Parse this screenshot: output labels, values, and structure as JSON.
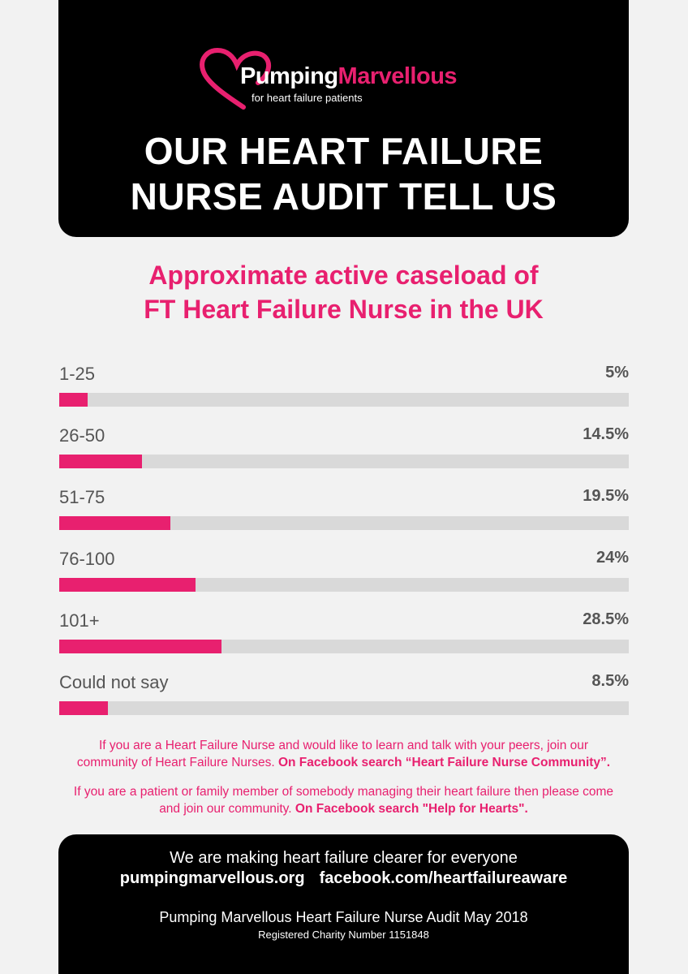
{
  "brand": {
    "name_part1": "Pumping",
    "name_part2": "Marvellous",
    "tagline": "for heart failure patients",
    "accent_color": "#e8206f",
    "logo_icon": "heart-icon"
  },
  "header": {
    "title_line1": "OUR HEART FAILURE",
    "title_line2": "NURSE AUDIT TELL US"
  },
  "chart_data": {
    "type": "bar",
    "orientation": "horizontal",
    "title_line1": "Approximate active caseload of",
    "title_line2": "FT Heart Failure Nurse in the UK",
    "categories": [
      "1-25",
      "26-50",
      "51-75",
      "76-100",
      "101+",
      "Could not say"
    ],
    "values": [
      5,
      14.5,
      19.5,
      24,
      28.5,
      8.5
    ],
    "value_labels": [
      "5%",
      "14.5%",
      "19.5%",
      "24%",
      "28.5%",
      "8.5%"
    ],
    "unit": "%",
    "xlim": [
      0,
      100
    ],
    "bar_color": "#e8206f",
    "track_color": "#d9d9d9",
    "grid": false
  },
  "info": {
    "p1_line1": "If you are a Heart Failure Nurse and would like to learn and talk with your peers, join our",
    "p1_line2_text": "community of Heart Failure Nurses.",
    "p1_line2_bold": "On Facebook search “Heart Failure Nurse Community”.",
    "p2_line1": "If you are a patient or family member of somebody managing their heart failure then please come",
    "p2_line2_text": "and join our community.",
    "p2_line2_bold": "On Facebook search \"Help for Hearts\"."
  },
  "footer": {
    "slogan": "We are making heart failure clearer for everyone",
    "website": "pumpingmarvellous.org",
    "facebook": "facebook.com/heartfailureaware",
    "audit": "Pumping Marvellous Heart Failure Nurse Audit May 2018",
    "charity": "Registered Charity Number 1151848"
  }
}
